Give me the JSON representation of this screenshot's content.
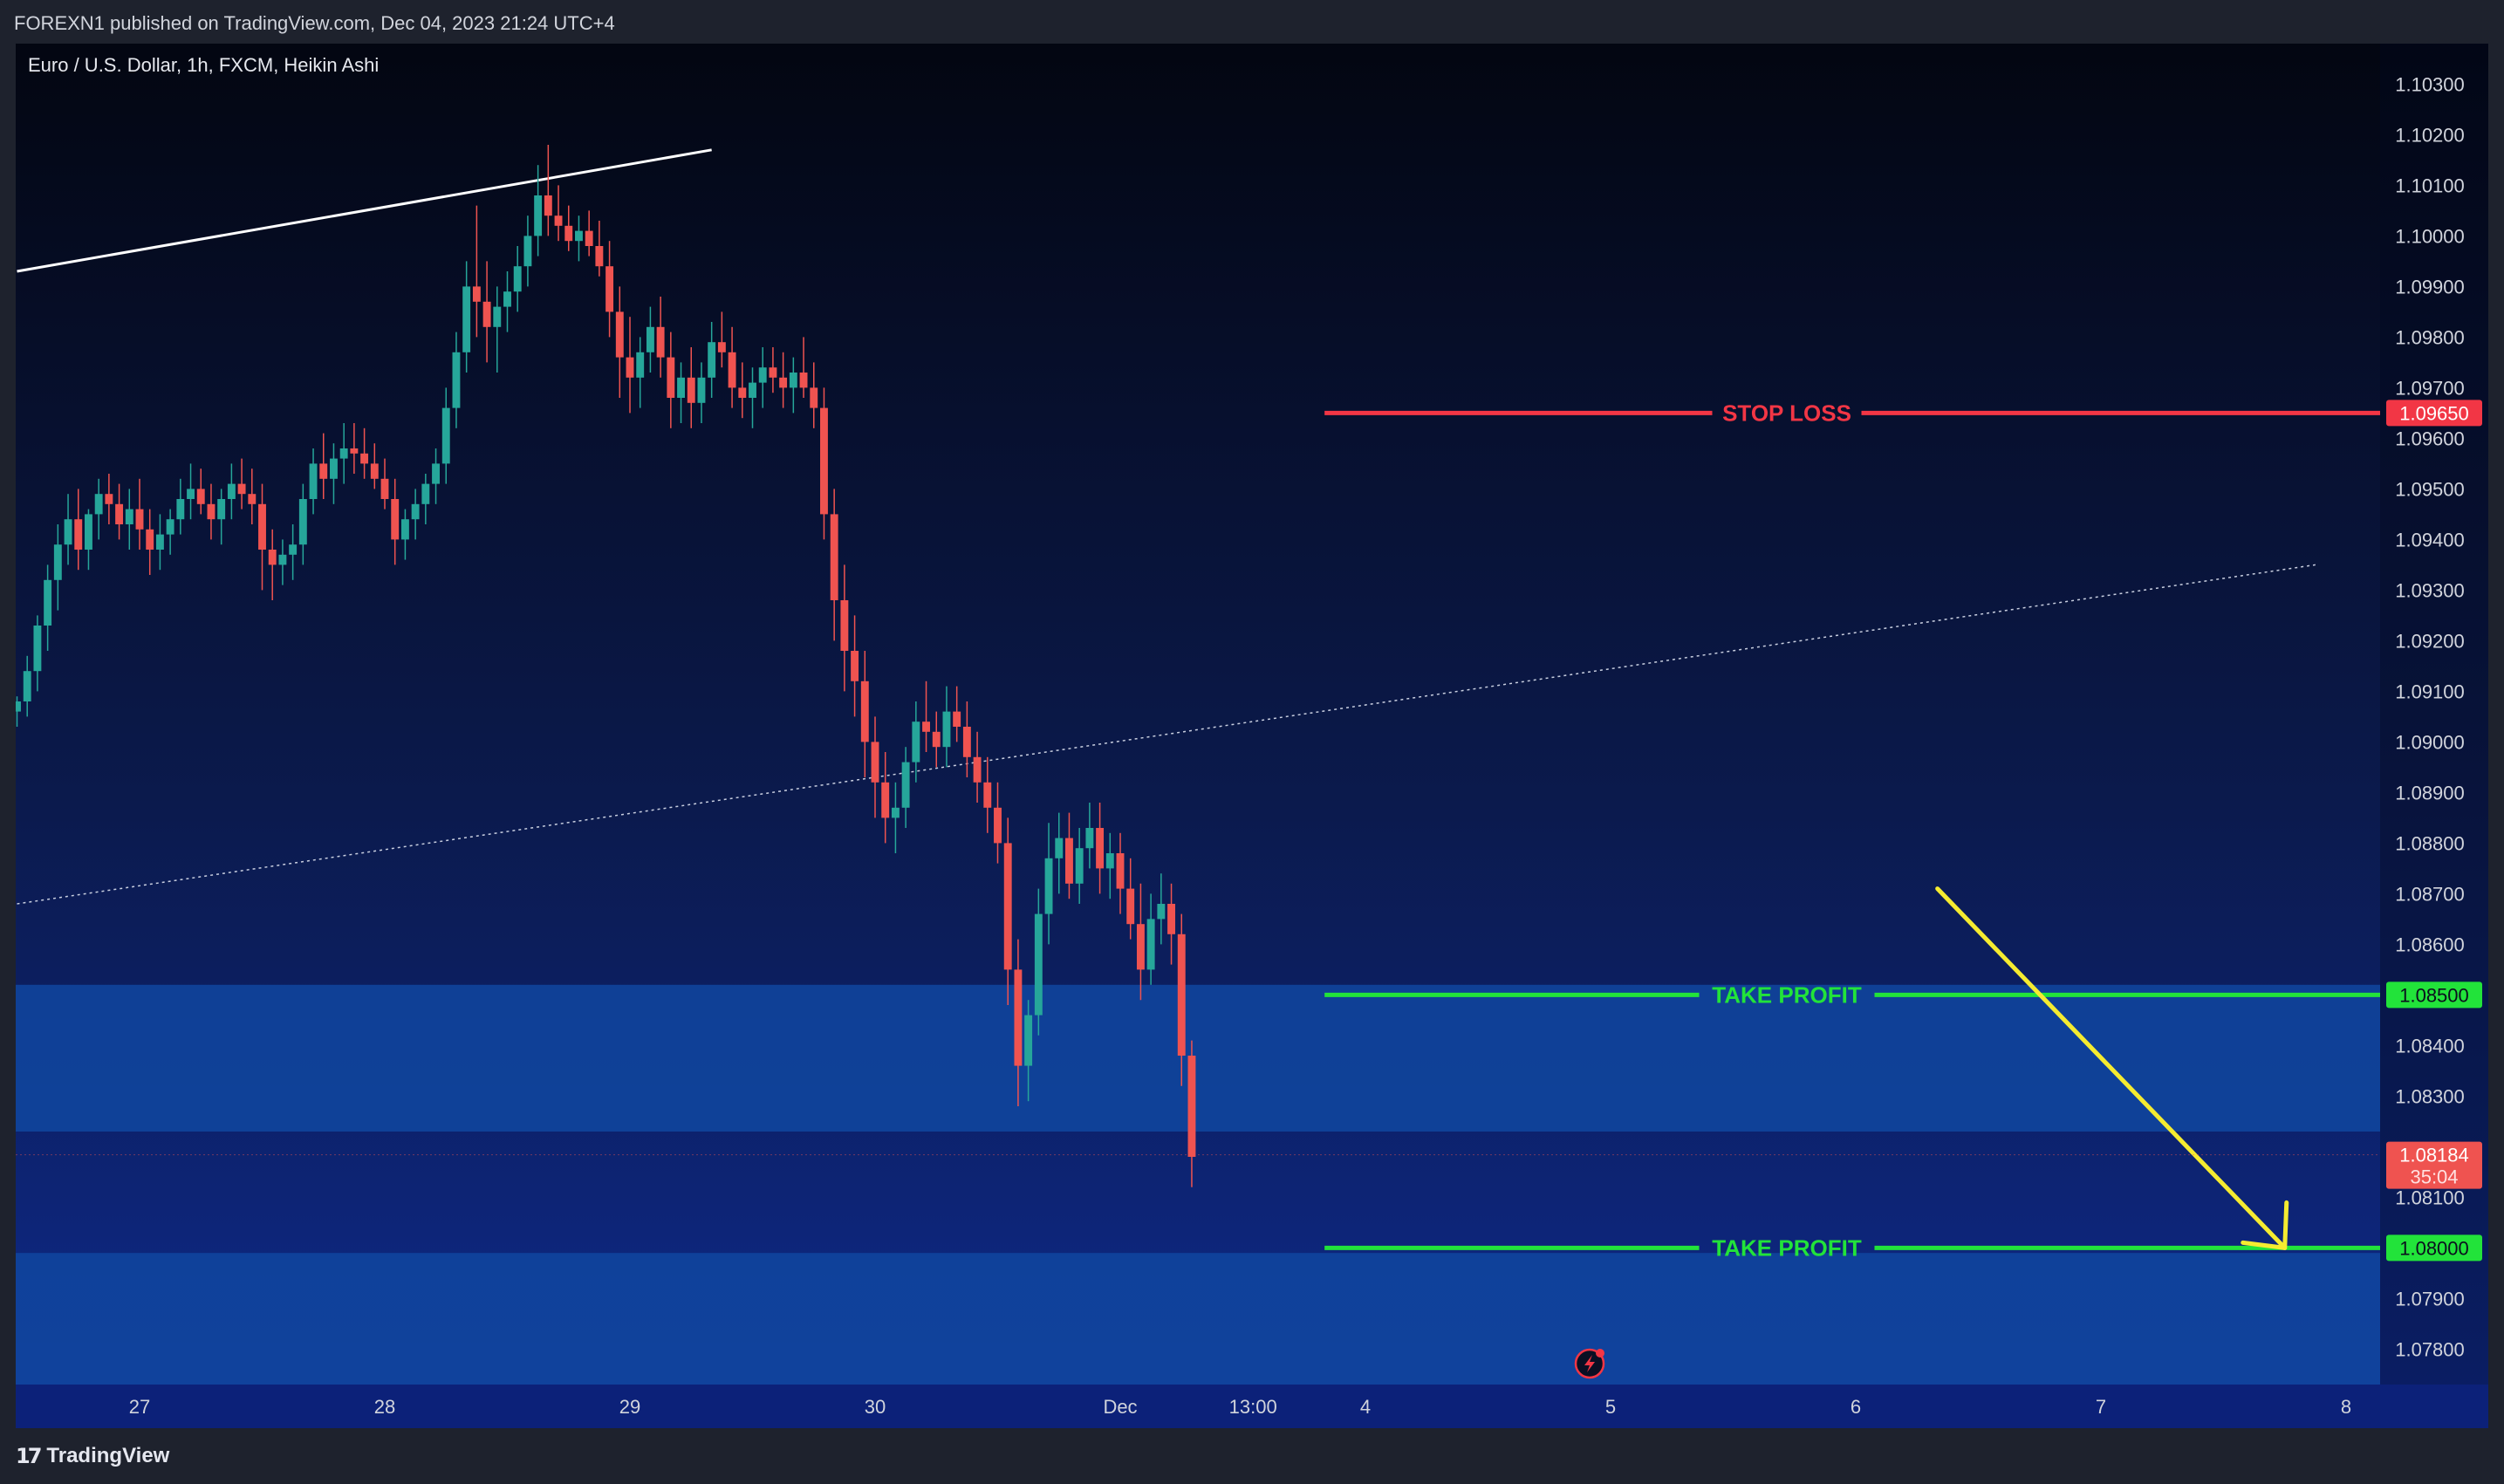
{
  "header": {
    "publish_text": "FOREXN1 published on TradingView.com, Dec 04, 2023 21:24 UTC+4"
  },
  "footer": {
    "brand": "TradingView",
    "logo_glyph": "17"
  },
  "chart_data": {
    "type": "candlestick",
    "title": "Euro / U.S. Dollar, 1h, FXCM, Heikin Ashi",
    "symbol": "EUR/USD",
    "timeframe": "1h",
    "source": "FXCM",
    "style": "Heikin Ashi",
    "ylim": [
      1.0773,
      1.1038
    ],
    "y_ticks": [
      "1.10300",
      "1.10200",
      "1.10100",
      "1.10000",
      "1.09900",
      "1.09800",
      "1.09700",
      "1.09600",
      "1.09500",
      "1.09400",
      "1.09300",
      "1.09200",
      "1.09100",
      "1.09000",
      "1.08900",
      "1.08800",
      "1.08700",
      "1.08600",
      "1.08400",
      "1.08300",
      "1.08100",
      "1.07900",
      "1.07800"
    ],
    "x_ticks": [
      {
        "label": "27",
        "bar": 0
      },
      {
        "label": "28",
        "bar": 24
      },
      {
        "label": "29",
        "bar": 48
      },
      {
        "label": "30",
        "bar": 72
      },
      {
        "label": "Dec",
        "bar": 96
      },
      {
        "label": "13:00",
        "bar": 109
      },
      {
        "label": "4",
        "bar": 120
      },
      {
        "label": "5",
        "bar": 144
      },
      {
        "label": "6",
        "bar": 168
      },
      {
        "label": "7",
        "bar": 192
      },
      {
        "label": "8",
        "bar": 216
      }
    ],
    "bars_total": 230,
    "up_color": "#26a69a",
    "down_color": "#ef5350",
    "candles_anchor": {
      "start_bar": -12
    },
    "candles": [
      [
        1.0906,
        1.0909,
        1.0903,
        1.0908
      ],
      [
        1.0908,
        1.0917,
        1.0905,
        1.0914
      ],
      [
        1.0914,
        1.0925,
        1.091,
        1.0923
      ],
      [
        1.0923,
        1.0935,
        1.0918,
        1.0932
      ],
      [
        1.0932,
        1.0943,
        1.0926,
        1.0939
      ],
      [
        1.0939,
        1.0949,
        1.0935,
        1.0944
      ],
      [
        1.0944,
        1.095,
        1.0934,
        1.0938
      ],
      [
        1.0938,
        1.0946,
        1.0934,
        1.0945
      ],
      [
        1.0945,
        1.0952,
        1.094,
        1.0949
      ],
      [
        1.0949,
        1.0953,
        1.0943,
        1.0947
      ],
      [
        1.0947,
        1.0951,
        1.094,
        1.0943
      ],
      [
        1.0943,
        1.095,
        1.0938,
        1.0946
      ],
      [
        1.0946,
        1.0952,
        1.0938,
        1.0942
      ],
      [
        1.0942,
        1.0946,
        1.0933,
        1.0938
      ],
      [
        1.0938,
        1.0945,
        1.0934,
        1.0941
      ],
      [
        1.0941,
        1.0946,
        1.0937,
        1.0944
      ],
      [
        1.0944,
        1.0952,
        1.0941,
        1.0948
      ],
      [
        1.0948,
        1.0955,
        1.0944,
        1.095
      ],
      [
        1.095,
        1.0954,
        1.0945,
        1.0947
      ],
      [
        1.0947,
        1.0951,
        1.094,
        1.0944
      ],
      [
        1.0944,
        1.095,
        1.0939,
        1.0948
      ],
      [
        1.0948,
        1.0955,
        1.0944,
        1.0951
      ],
      [
        1.0951,
        1.0956,
        1.0946,
        1.0949
      ],
      [
        1.0949,
        1.0954,
        1.0943,
        1.0947
      ],
      [
        1.0947,
        1.0951,
        1.093,
        1.0938
      ],
      [
        1.0938,
        1.0942,
        1.0928,
        1.0935
      ],
      [
        1.0935,
        1.094,
        1.0931,
        1.0937
      ],
      [
        1.0937,
        1.0943,
        1.0932,
        1.0939
      ],
      [
        1.0939,
        1.0951,
        1.0935,
        1.0948
      ],
      [
        1.0948,
        1.0958,
        1.0945,
        1.0955
      ],
      [
        1.0955,
        1.0961,
        1.0948,
        1.0952
      ],
      [
        1.0952,
        1.0959,
        1.0947,
        1.0956
      ],
      [
        1.0956,
        1.0963,
        1.0951,
        1.0958
      ],
      [
        1.0958,
        1.0963,
        1.0953,
        1.0957
      ],
      [
        1.0957,
        1.0962,
        1.0952,
        1.0955
      ],
      [
        1.0955,
        1.0959,
        1.095,
        1.0952
      ],
      [
        1.0952,
        1.0956,
        1.0946,
        1.0948
      ],
      [
        1.0948,
        1.0952,
        1.0935,
        1.094
      ],
      [
        1.094,
        1.0946,
        1.0936,
        1.0944
      ],
      [
        1.0944,
        1.095,
        1.094,
        1.0947
      ],
      [
        1.0947,
        1.0953,
        1.0943,
        1.0951
      ],
      [
        1.0951,
        1.0958,
        1.0947,
        1.0955
      ],
      [
        1.0955,
        1.097,
        1.0951,
        1.0966
      ],
      [
        1.0966,
        1.0981,
        1.0962,
        1.0977
      ],
      [
        1.0977,
        1.0995,
        1.0973,
        1.099
      ],
      [
        1.099,
        1.1006,
        1.098,
        1.0987
      ],
      [
        1.0987,
        1.0995,
        1.0975,
        1.0982
      ],
      [
        1.0982,
        1.099,
        1.0973,
        1.0986
      ],
      [
        1.0986,
        1.0993,
        1.0981,
        1.0989
      ],
      [
        1.0989,
        1.0998,
        1.0985,
        1.0994
      ],
      [
        1.0994,
        1.1004,
        1.099,
        1.1
      ],
      [
        1.1,
        1.1014,
        1.0996,
        1.1008
      ],
      [
        1.1008,
        1.1018,
        1.1,
        1.1004
      ],
      [
        1.1004,
        1.101,
        1.0999,
        1.1002
      ],
      [
        1.1002,
        1.1006,
        1.0997,
        1.0999
      ],
      [
        1.0999,
        1.1004,
        1.0995,
        1.1001
      ],
      [
        1.1001,
        1.1005,
        1.0996,
        1.0998
      ],
      [
        1.0998,
        1.1003,
        1.0992,
        1.0994
      ],
      [
        1.0994,
        1.0999,
        1.098,
        1.0985
      ],
      [
        1.0985,
        1.099,
        1.0968,
        1.0976
      ],
      [
        1.0976,
        1.0984,
        1.0965,
        1.0972
      ],
      [
        1.0972,
        1.098,
        1.0966,
        1.0977
      ],
      [
        1.0977,
        1.0986,
        1.0973,
        1.0982
      ],
      [
        1.0982,
        1.0988,
        1.0972,
        1.0976
      ],
      [
        1.0976,
        1.0981,
        1.0962,
        1.0968
      ],
      [
        1.0968,
        1.0975,
        1.0963,
        1.0972
      ],
      [
        1.0972,
        1.0978,
        1.0962,
        1.0967
      ],
      [
        1.0967,
        1.0975,
        1.0963,
        1.0972
      ],
      [
        1.0972,
        1.0983,
        1.0968,
        1.0979
      ],
      [
        1.0979,
        1.0985,
        1.0974,
        1.0977
      ],
      [
        1.0977,
        1.0982,
        1.0966,
        1.097
      ],
      [
        1.097,
        1.0975,
        1.0964,
        1.0968
      ],
      [
        1.0968,
        1.0974,
        1.0962,
        1.0971
      ],
      [
        1.0971,
        1.0978,
        1.0966,
        1.0974
      ],
      [
        1.0974,
        1.0978,
        1.0969,
        1.0972
      ],
      [
        1.0972,
        1.0977,
        1.0966,
        1.097
      ],
      [
        1.097,
        1.0976,
        1.0965,
        1.0973
      ],
      [
        1.0973,
        1.098,
        1.0968,
        1.097
      ],
      [
        1.097,
        1.0975,
        1.0962,
        1.0966
      ],
      [
        1.0966,
        1.097,
        1.094,
        1.0945
      ],
      [
        1.0945,
        1.095,
        1.092,
        1.0928
      ],
      [
        1.0928,
        1.0935,
        1.091,
        1.0918
      ],
      [
        1.0918,
        1.0925,
        1.0905,
        1.0912
      ],
      [
        1.0912,
        1.0918,
        1.0893,
        1.09
      ],
      [
        1.09,
        1.0905,
        1.0885,
        1.0892
      ],
      [
        1.0892,
        1.0898,
        1.088,
        1.0885
      ],
      [
        1.0885,
        1.0892,
        1.0878,
        1.0887
      ],
      [
        1.0887,
        1.0899,
        1.0883,
        1.0896
      ],
      [
        1.0896,
        1.0908,
        1.0892,
        1.0904
      ],
      [
        1.0904,
        1.0912,
        1.0898,
        1.0902
      ],
      [
        1.0902,
        1.0906,
        1.0895,
        1.0899
      ],
      [
        1.0899,
        1.0911,
        1.0895,
        1.0906
      ],
      [
        1.0906,
        1.0911,
        1.09,
        1.0903
      ],
      [
        1.0903,
        1.0908,
        1.0893,
        1.0897
      ],
      [
        1.0897,
        1.0902,
        1.0888,
        1.0892
      ],
      [
        1.0892,
        1.0897,
        1.0882,
        1.0887
      ],
      [
        1.0887,
        1.0892,
        1.0876,
        1.088
      ],
      [
        1.088,
        1.0885,
        1.0848,
        1.0855
      ],
      [
        1.0855,
        1.0861,
        1.0828,
        1.0836
      ],
      [
        1.0836,
        1.0849,
        1.0829,
        1.0846
      ],
      [
        1.0846,
        1.0871,
        1.0842,
        1.0866
      ],
      [
        1.0866,
        1.0884,
        1.086,
        1.0877
      ],
      [
        1.0877,
        1.0886,
        1.087,
        1.0881
      ],
      [
        1.0881,
        1.0886,
        1.0869,
        1.0872
      ],
      [
        1.0872,
        1.0883,
        1.0868,
        1.0879
      ],
      [
        1.0879,
        1.0888,
        1.0875,
        1.0883
      ],
      [
        1.0883,
        1.0888,
        1.087,
        1.0875
      ],
      [
        1.0875,
        1.0882,
        1.0869,
        1.0878
      ],
      [
        1.0878,
        1.0882,
        1.0866,
        1.0871
      ],
      [
        1.0871,
        1.0877,
        1.0861,
        1.0864
      ],
      [
        1.0864,
        1.0872,
        1.0849,
        1.0855
      ],
      [
        1.0855,
        1.087,
        1.0852,
        1.0865
      ],
      [
        1.0865,
        1.0874,
        1.086,
        1.0868
      ],
      [
        1.0868,
        1.0872,
        1.0856,
        1.0862
      ],
      [
        1.0862,
        1.0866,
        1.0832,
        1.0838
      ],
      [
        1.0838,
        1.0841,
        1.0812,
        1.0818
      ]
    ],
    "trendline_solid": {
      "from": {
        "bar": -12,
        "price": 1.0993
      },
      "to": {
        "bar": 56,
        "price": 1.1017
      }
    },
    "trendline_dotted": {
      "from": {
        "bar": -12,
        "price": 1.0868
      },
      "to": {
        "bar": 213,
        "price": 1.0935
      }
    },
    "levels": [
      {
        "label": "STOP LOSS",
        "price": 1.0965,
        "value_text": "1.09650",
        "color": "#f23645",
        "from_bar": 116
      },
      {
        "label": "TAKE PROFIT",
        "price": 1.085,
        "value_text": "1.08500",
        "color": "#22e33a",
        "from_bar": 116
      },
      {
        "label": "TAKE PROFIT",
        "price": 1.08,
        "value_text": "1.08000",
        "color": "#22e33a",
        "from_bar": 116
      }
    ],
    "zones": [
      {
        "from": 1.0823,
        "to": 1.0852,
        "color": "#1147a0"
      },
      {
        "from": 1.0773,
        "to": 1.0799,
        "color": "#1147a0"
      }
    ],
    "arrow": {
      "from": {
        "bar": 176,
        "price": 1.0871
      },
      "to": {
        "bar": 210,
        "price": 1.08
      },
      "color": "#f5eb30"
    },
    "last_price": {
      "value": "1.08184",
      "countdown": "35:04",
      "color": "#ef5350",
      "price": 1.08184
    }
  }
}
